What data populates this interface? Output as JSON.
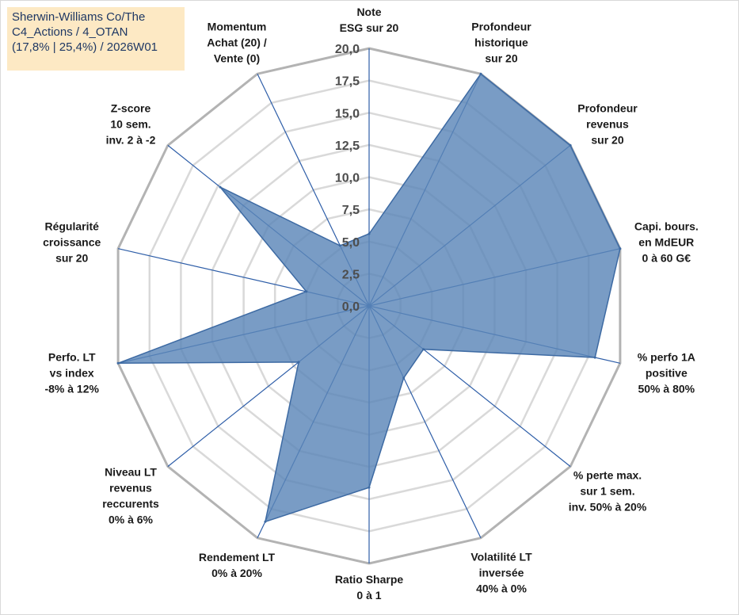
{
  "title": {
    "line1": "Sherwin-Williams Co/The",
    "line2": "C4_Actions / 4_OTAN",
    "line3": "(17,8% | 25,4%) / 2026W01"
  },
  "colors": {
    "fill": "#5b86b8",
    "stroke": "#3d6aa3",
    "spoke": "#2e5ea8",
    "grid": "#bfbfbf",
    "title_bg": "#fde9c4",
    "title_text": "#1f3864"
  },
  "chart_data": {
    "type": "radar",
    "title": "",
    "rlim": [
      0,
      20
    ],
    "ticks": [
      "0,0",
      "2,5",
      "5,0",
      "7,5",
      "10,0",
      "12,5",
      "15,0",
      "17,5",
      "20,0"
    ],
    "axes": [
      {
        "label": [
          "Note",
          "ESG sur 20"
        ],
        "value": 5.6
      },
      {
        "label": [
          "Profondeur",
          "historique",
          "sur 20"
        ],
        "value": 20.0
      },
      {
        "label": [
          "Profondeur",
          "revenus",
          "sur 20"
        ],
        "value": 20.0
      },
      {
        "label": [
          "Capi. bours.",
          "en MdEUR",
          "0 à 60 G€"
        ],
        "value": 20.0
      },
      {
        "label": [
          "% perfo 1A",
          "positive",
          "50% à 80%"
        ],
        "value": 18.0
      },
      {
        "label": [
          "% perte max.",
          "sur 1 sem.",
          "inv. 50% à 20%"
        ],
        "value": 5.4
      },
      {
        "label": [
          "Volatilité LT",
          "inversée",
          "40% à 0%"
        ],
        "value": 6.2
      },
      {
        "label": [
          "Ratio Sharpe",
          "0 à 1"
        ],
        "value": 14.1
      },
      {
        "label": [
          "Rendement LT",
          "0% à 20%"
        ],
        "value": 18.6
      },
      {
        "label": [
          "Niveau LT",
          "revenus",
          "reccurents",
          "0% à 6%"
        ],
        "value": 7.0
      },
      {
        "label": [
          "Perfo. LT",
          "vs index",
          "-8% à 12%"
        ],
        "value": 20.0
      },
      {
        "label": [
          "Régularité",
          "croissance",
          "sur 20"
        ],
        "value": 5.0
      },
      {
        "label": [
          "Z-score",
          "10 sem.",
          "inv. 2 à -2"
        ],
        "value": 14.8
      },
      {
        "label": [
          "Momentum",
          "Achat (20) /",
          "Vente (0)"
        ],
        "value": 5.2
      }
    ]
  }
}
